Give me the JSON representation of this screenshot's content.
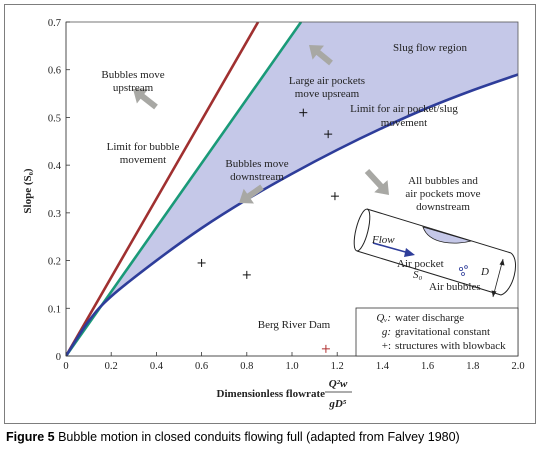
{
  "chart_data": {
    "type": "line",
    "xlabel": "Dimensionless flowrate",
    "xlabel_formula": {
      "numerator": "Q²w",
      "denominator": "gD⁵"
    },
    "ylabel": "Slope (S₀)",
    "xlim": [
      0,
      2.0
    ],
    "ylim": [
      0,
      0.7
    ],
    "xticks": [
      "0",
      "0.2",
      "0.4",
      "0.6",
      "0.8",
      "1.0",
      "1.2",
      "1.4",
      "1.6",
      "1.8",
      "2.0"
    ],
    "yticks": [
      "0",
      "0.1",
      "0.2",
      "0.3",
      "0.4",
      "0.5",
      "0.6",
      "0.7"
    ],
    "series": [
      {
        "color": "#a03030",
        "x": [
          0,
          0.85
        ],
        "y": [
          0,
          0.7
        ]
      },
      {
        "color": "#1a9a78",
        "x": [
          0,
          1.04
        ],
        "y": [
          0,
          0.7
        ]
      },
      {
        "color": "#2e3d9a",
        "x": [
          0,
          0.1,
          0.2,
          0.4,
          0.6,
          0.8,
          1.0,
          1.2,
          1.4,
          1.6,
          1.8,
          2.0
        ],
        "y": [
          0,
          0.073,
          0.125,
          0.2,
          0.268,
          0.328,
          0.382,
          0.432,
          0.478,
          0.52,
          0.557,
          0.59
        ]
      }
    ],
    "shaded_region": {
      "color": "#c5c8e8",
      "label": "Slug flow region"
    },
    "points": [
      {
        "x": 0.6,
        "y": 0.195
      },
      {
        "x": 0.8,
        "y": 0.17
      },
      {
        "x": 1.05,
        "y": 0.51
      },
      {
        "x": 1.16,
        "y": 0.465
      },
      {
        "x": 1.19,
        "y": 0.335
      },
      {
        "x": 1.15,
        "y": 0.015,
        "label": "Berg River Dam",
        "color": "#b03030"
      }
    ],
    "annotations": {
      "bubbles_upstream": [
        "Bubbles move",
        "upstream"
      ],
      "limit_bubble": [
        "Limit for bubble",
        "movement"
      ],
      "bubbles_downstream": [
        "Bubbles move",
        "downstream"
      ],
      "large_pockets": [
        "Large air pockets",
        "move upsream"
      ],
      "limit_pocket": [
        "Limit for air pocket/slug",
        "movement"
      ],
      "all_bubbles": [
        "All bubbles and",
        "air pockets move",
        "downstream"
      ],
      "slug_region": "Slug flow region"
    },
    "inset": {
      "flow": "Flow",
      "air_pocket": "Air pocket",
      "slope": "S₀",
      "air_bubbles": "Air bubbles",
      "diameter": "D"
    },
    "legend": [
      {
        "symbol": "Qᵥ:",
        "text": "water discharge"
      },
      {
        "symbol": "g:",
        "text": "gravitational constant"
      },
      {
        "symbol": "+:",
        "text": "structures with blowback"
      }
    ],
    "arrow_color": "#a8a8a4"
  },
  "caption": {
    "bold": "Figure 5",
    "text": " Bubble motion in closed conduits flowing full (adapted from Falvey 1980)"
  }
}
